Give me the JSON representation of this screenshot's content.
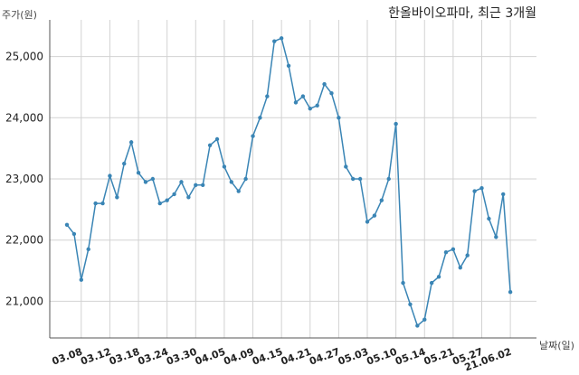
{
  "chart_data": {
    "type": "line",
    "title": "한올바이오파마, 최근 3개월",
    "ylabel": "주가(원)",
    "xlabel": "날짜(일)",
    "ylim": [
      20400,
      25600
    ],
    "yticks": [
      21000,
      22000,
      23000,
      24000,
      25000
    ],
    "ytick_labels": [
      "21,000",
      "22,000",
      "23,000",
      "24,000",
      "25,000"
    ],
    "xtick_labels": [
      "03.08",
      "03.12",
      "03.18",
      "03.24",
      "03.30",
      "04.05",
      "04.09",
      "04.15",
      "04.21",
      "04.27",
      "05.03",
      "05.10",
      "05.14",
      "05.21",
      "05.27",
      "21.06.02"
    ],
    "xtick_index": [
      2,
      6,
      10,
      14,
      18,
      22,
      26,
      30,
      34,
      38,
      42,
      46,
      50,
      54,
      58,
      62
    ],
    "grid": true,
    "legend": "none",
    "color": "#3a85b5",
    "values": [
      22250,
      22100,
      21350,
      21850,
      22600,
      22600,
      23050,
      22700,
      23250,
      23600,
      23100,
      22950,
      23000,
      22600,
      22650,
      22750,
      22950,
      22700,
      22900,
      22900,
      23550,
      23650,
      23200,
      22950,
      22800,
      23000,
      23700,
      24000,
      24350,
      25250,
      25300,
      24850,
      24250,
      24350,
      24150,
      24200,
      24550,
      24400,
      24000,
      23200,
      23000,
      23000,
      22300,
      22400,
      22650,
      23000,
      23900,
      21300,
      20950,
      20600,
      20700,
      21300,
      21400,
      21800,
      21850,
      21550,
      21750,
      22800,
      22850,
      22350,
      22050,
      22750,
      21150
    ]
  }
}
